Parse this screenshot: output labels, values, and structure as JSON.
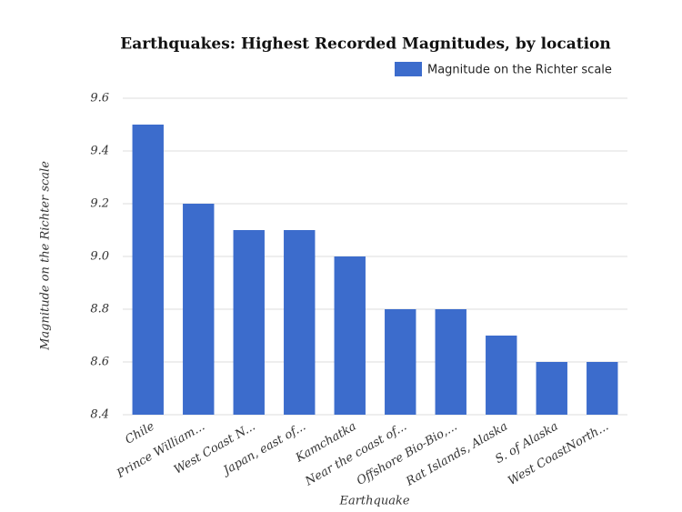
{
  "chart_data": {
    "type": "bar",
    "title": "Earthquakes: Highest Recorded Magnitudes, by location",
    "x_label": "Earthquake",
    "y_label": "Magnitude on the Richter scale",
    "categories": [
      "Chile",
      "Prince William...",
      "West Coast N...",
      "Japan, east of...",
      "Kamchatka",
      "Near the coast of...",
      "Offshore Bio-Bio,...",
      "Rat Islands, Alaska",
      "S. of Alaska",
      "West CoastNorth..."
    ],
    "series": [
      {
        "name": "Magnitude on the Richter scale",
        "color": "#3c6ccc",
        "values": [
          9.5,
          9.2,
          9.1,
          9.1,
          9.0,
          8.8,
          8.8,
          8.7,
          8.6,
          8.6
        ]
      }
    ],
    "ylim": [
      8.4,
      9.6
    ],
    "yticks": [
      8.4,
      8.6,
      8.8,
      {
        "value": 9,
        "label": "9.0"
      },
      9.2,
      9.4,
      9.6
    ],
    "grid": true,
    "legend": "top-right"
  }
}
